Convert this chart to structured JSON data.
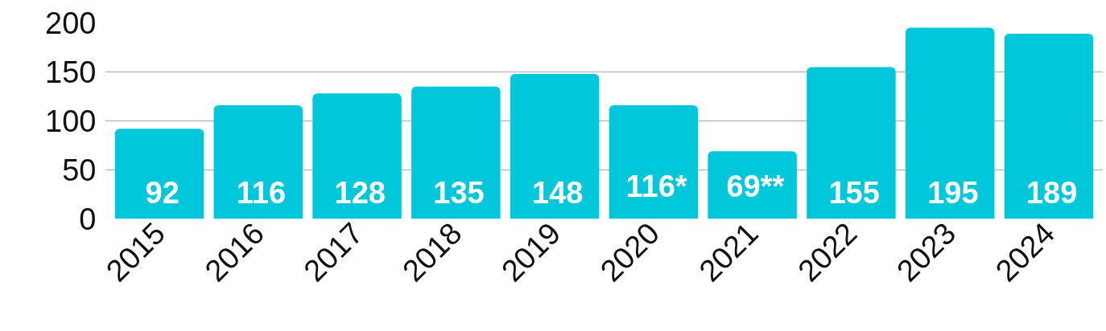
{
  "chart_data": {
    "type": "bar",
    "categories": [
      "2015",
      "2016",
      "2017",
      "2018",
      "2019",
      "2020",
      "2021",
      "2022",
      "2023",
      "2024"
    ],
    "values": [
      92,
      116,
      128,
      135,
      148,
      116,
      69,
      155,
      195,
      189
    ],
    "color": "#00c8da",
    "value_labels": [
      "92",
      "116",
      "128",
      "135",
      "148",
      "116*",
      "69**",
      "155",
      "195",
      "189"
    ],
    "ylim": [
      0,
      200
    ],
    "yticks": [
      0,
      50,
      100,
      150,
      200
    ],
    "grid": "y"
  }
}
